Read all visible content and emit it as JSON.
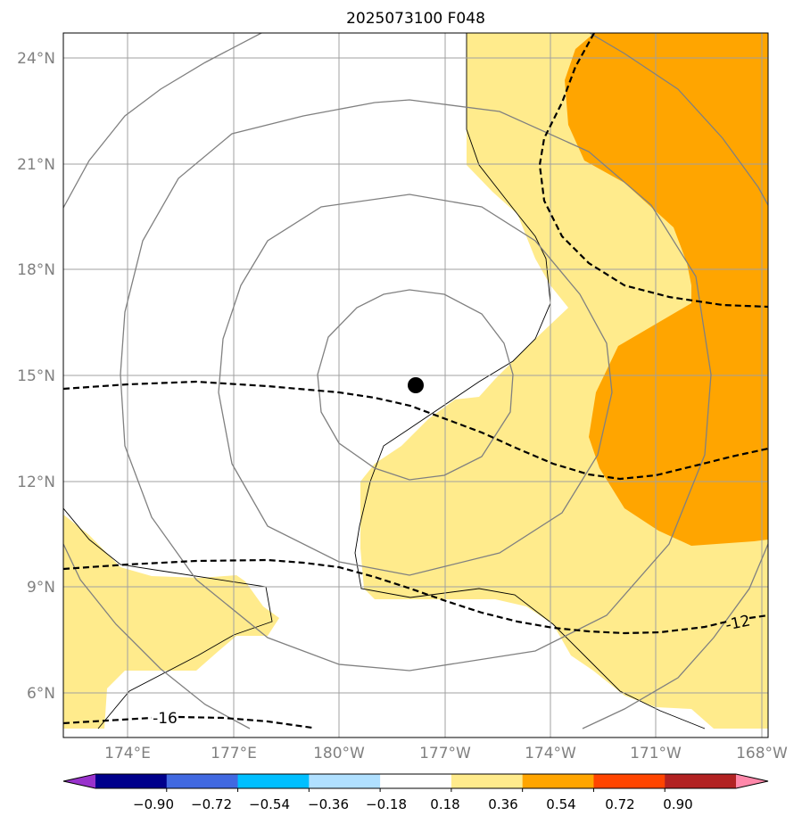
{
  "title": "2025073100 F048",
  "map": {
    "lat_labels": [
      "24°N",
      "21°N",
      "18°N",
      "15°N",
      "12°N",
      "9°N",
      "6°N"
    ],
    "lon_labels": [
      "174°E",
      "177°E",
      "180°W",
      "177°W",
      "174°W",
      "171°W",
      "168°W"
    ],
    "contour_labels": [
      "-16",
      "-12"
    ],
    "fill_colors": {
      "light": "#ffeb8c",
      "medium": "#ffa500"
    }
  },
  "colorbar": {
    "colors": [
      "#9932cc",
      "#00008b",
      "#4169e1",
      "#00bfff",
      "#b0e0ff",
      "#ffffff",
      "#ffeb8c",
      "#ffa500",
      "#ff4500",
      "#b22222",
      "#ff88aa"
    ],
    "labels": [
      "−0.90",
      "−0.72",
      "−0.54",
      "−0.36",
      "−0.18",
      "0.18",
      "0.36",
      "0.54",
      "0.72",
      "0.90"
    ]
  }
}
